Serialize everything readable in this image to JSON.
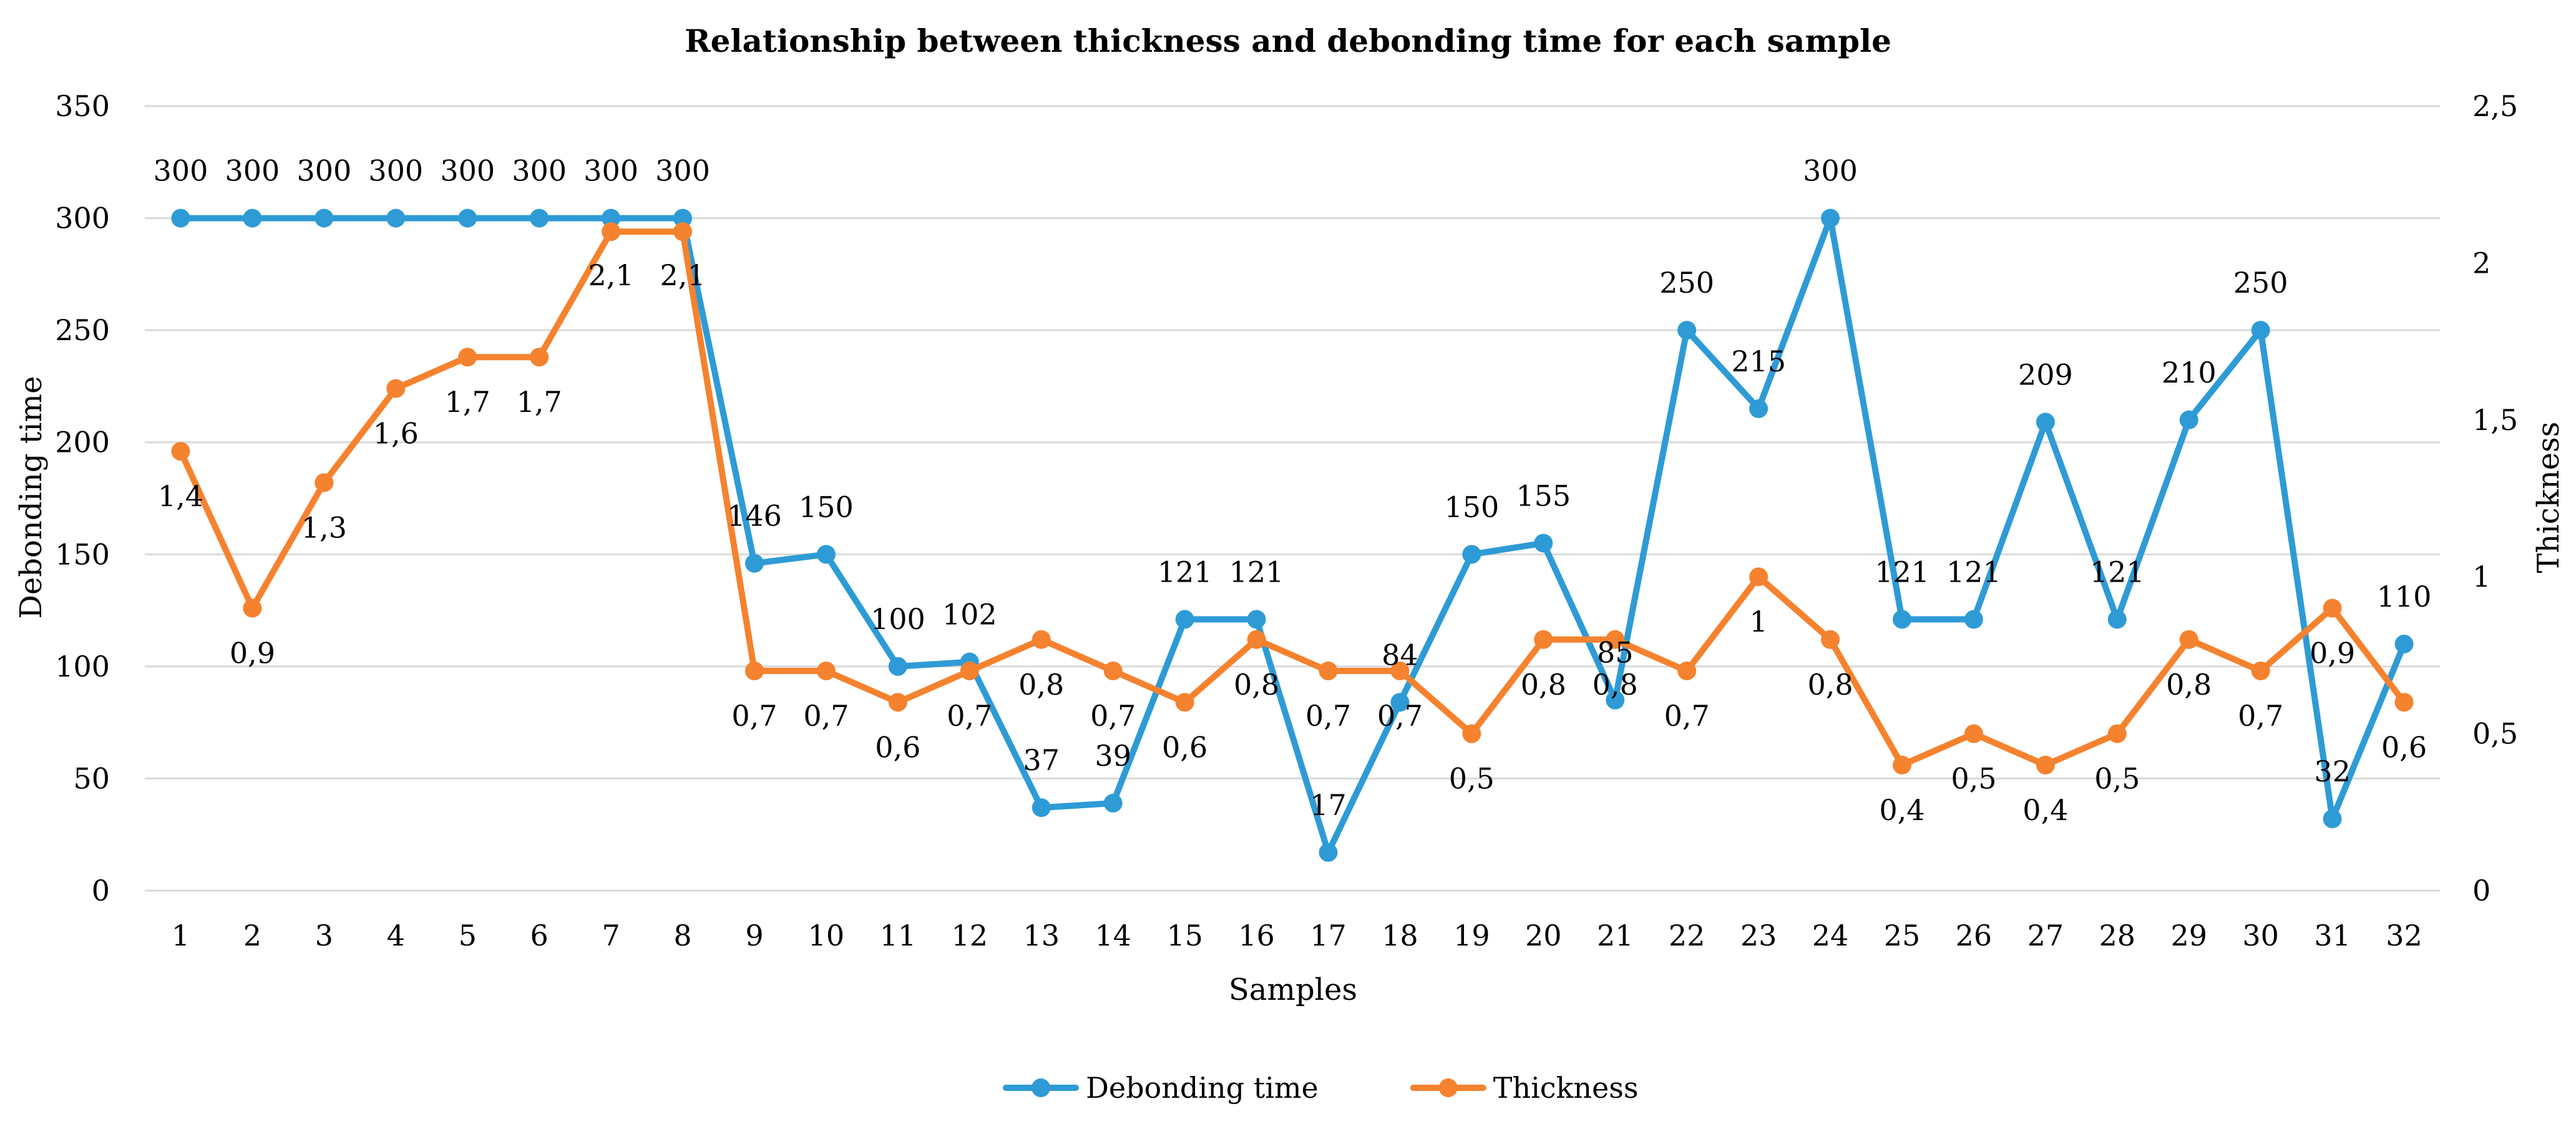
{
  "chart_data": {
    "type": "line",
    "title": "Relationship between thickness and debonding time for each sample",
    "xlabel": "Samples",
    "ylabel": "Debonding time",
    "y2label": "Thickness",
    "ylim": [
      0,
      350
    ],
    "yticks": [
      "0",
      "50",
      "100",
      "150",
      "200",
      "250",
      "300",
      "350"
    ],
    "y2lim": [
      0,
      2.5
    ],
    "y2ticks": [
      "0",
      "0,5",
      "1",
      "1,5",
      "2",
      "2,5"
    ],
    "grid": true,
    "legend_position": "bottom",
    "categories": [
      "1",
      "2",
      "3",
      "4",
      "5",
      "6",
      "7",
      "8",
      "9",
      "10",
      "11",
      "12",
      "13",
      "14",
      "15",
      "16",
      "17",
      "18",
      "19",
      "20",
      "21",
      "22",
      "23",
      "24",
      "25",
      "26",
      "27",
      "28",
      "29",
      "30",
      "31",
      "32"
    ],
    "series": [
      {
        "name": "Debonding time",
        "axis": "left",
        "color": "#2e9bd6",
        "values": [
          300,
          300,
          300,
          300,
          300,
          300,
          300,
          300,
          146,
          150,
          100,
          102,
          37,
          39,
          121,
          121,
          17,
          84,
          150,
          155,
          85,
          250,
          215,
          300,
          121,
          121,
          209,
          121,
          210,
          250,
          32,
          110
        ],
        "labels": [
          "300",
          "300",
          "300",
          "300",
          "300",
          "300",
          "300",
          "300",
          "146",
          "150",
          "100",
          "102",
          "37",
          "39",
          "121",
          "121",
          "17",
          "84",
          "150",
          "155",
          "85",
          "250",
          "215",
          "300",
          "121",
          "121",
          "209",
          "121",
          "210",
          "250",
          "32",
          "110"
        ]
      },
      {
        "name": "Thickness",
        "axis": "right",
        "color": "#f5822e",
        "values": [
          1.4,
          0.9,
          1.3,
          1.6,
          1.7,
          1.7,
          2.1,
          2.1,
          0.7,
          0.7,
          0.6,
          0.7,
          0.8,
          0.7,
          0.6,
          0.8,
          0.7,
          0.7,
          0.5,
          0.8,
          0.8,
          0.7,
          1,
          0.8,
          0.4,
          0.5,
          0.4,
          0.5,
          0.8,
          0.7,
          0.9,
          0.6
        ],
        "labels": [
          "1,4",
          "0,9",
          "1,3",
          "1,6",
          "1,7",
          "1,7",
          "2,1",
          "2,1",
          "0,7",
          "0,7",
          "0,6",
          "0,7",
          "0,8",
          "0,7",
          "0,6",
          "0,8",
          "0,7",
          "0,7",
          "0,5",
          "0,8",
          "0,8",
          "0,7",
          "1",
          "0,8",
          "0,4",
          "0,5",
          "0,4",
          "0,5",
          "0,8",
          "0,7",
          "0,9",
          "0,6"
        ]
      }
    ]
  }
}
